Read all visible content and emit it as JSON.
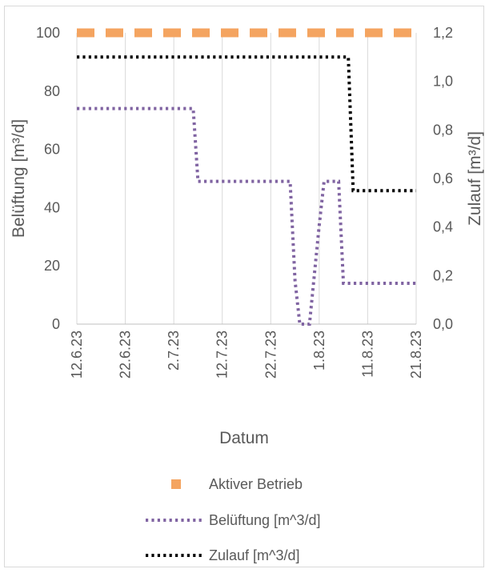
{
  "chart_data": {
    "type": "line",
    "xlabel": "Datum",
    "ylabel_left": "Belüftung [m³/d]",
    "ylabel_right": "Zulauf [m³/d]",
    "x_ticks": [
      "12.6.23",
      "22.6.23",
      "2.7.23",
      "12.7.23",
      "22.7.23",
      "1.8.23",
      "11.8.23",
      "21.8.23"
    ],
    "xlim": [
      "2023-06-12",
      "2023-08-21"
    ],
    "ylim_left": [
      0,
      100
    ],
    "ylim_right": [
      0,
      1.2
    ],
    "y_ticks_left": [
      "0",
      "20",
      "40",
      "60",
      "80",
      "100"
    ],
    "y_ticks_right": [
      "0,0",
      "0,2",
      "0,4",
      "0,6",
      "0,8",
      "1,0",
      "1,2"
    ],
    "grid": "vertical",
    "legend_position": "bottom",
    "series": [
      {
        "name": "Aktiver Betrieb",
        "axis": "left",
        "color": "#f4a460",
        "style": "dash",
        "points": [
          [
            "2023-06-12",
            100
          ],
          [
            "2023-08-21",
            100
          ]
        ]
      },
      {
        "name": "Belüftung [m^3/d]",
        "axis": "left",
        "color": "#8064a2",
        "style": "dot",
        "points": [
          [
            "2023-06-12",
            74
          ],
          [
            "2023-07-06",
            74
          ],
          [
            "2023-07-07",
            49
          ],
          [
            "2023-07-26",
            49
          ],
          [
            "2023-07-27",
            15
          ],
          [
            "2023-07-28",
            0
          ],
          [
            "2023-07-30",
            0
          ],
          [
            "2023-08-01",
            34
          ],
          [
            "2023-08-02",
            49
          ],
          [
            "2023-08-05",
            49
          ],
          [
            "2023-08-06",
            14
          ],
          [
            "2023-08-21",
            14
          ]
        ]
      },
      {
        "name": "Zulauf [m^3/d]",
        "axis": "right",
        "color": "#000000",
        "style": "dot",
        "points": [
          [
            "2023-06-12",
            1.1
          ],
          [
            "2023-08-07",
            1.1
          ],
          [
            "2023-08-08",
            0.55
          ],
          [
            "2023-08-21",
            0.55
          ]
        ]
      }
    ]
  }
}
